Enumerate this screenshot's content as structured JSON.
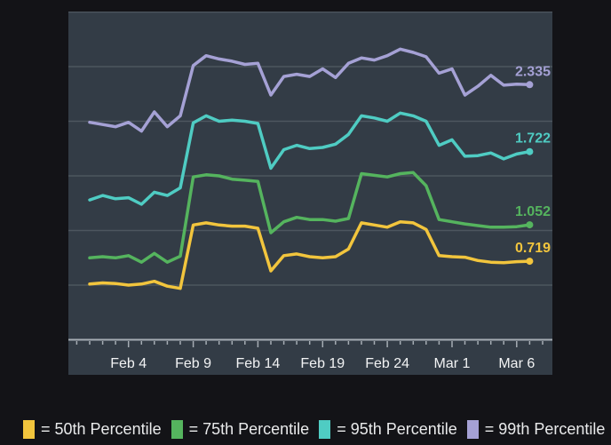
{
  "page": {
    "background_color": "#131317"
  },
  "chart_data": {
    "type": "line",
    "title": "",
    "xlabel": "",
    "ylabel": "",
    "x_tick_labels": [
      "Feb 4",
      "Feb 9",
      "Feb 14",
      "Feb 19",
      "Feb 24",
      "Mar 1",
      "Mar 6"
    ],
    "x_tick_indices": [
      3,
      8,
      13,
      18,
      23,
      28,
      33
    ],
    "n_points": 35,
    "x_range_note": "daily points from Feb 1 through Mar 7",
    "ylim": [
      0,
      3
    ],
    "y_grid_step": 0.5,
    "grid": true,
    "legend_position": "bottom",
    "panel_bg": "#333c46",
    "grid_color": "#4d565f",
    "axis_color": "#a6adb4",
    "tick_label_color": "#f2f3f4",
    "series": [
      {
        "name": "50th Percentile",
        "legend_label": "= 50th Percentile",
        "color": "#f2c53d",
        "end_label": "0.719",
        "values": [
          0.51,
          0.52,
          0.515,
          0.5,
          0.51,
          0.535,
          0.49,
          0.47,
          1.05,
          1.07,
          1.05,
          1.04,
          1.04,
          1.02,
          0.63,
          0.77,
          0.785,
          0.76,
          0.75,
          0.76,
          0.83,
          1.07,
          1.05,
          1.03,
          1.08,
          1.07,
          1.01,
          0.77,
          0.76,
          0.755,
          0.725,
          0.71,
          0.705,
          0.715,
          0.719
        ]
      },
      {
        "name": "75th Percentile",
        "legend_label": "= 75th Percentile",
        "color": "#55b45e",
        "end_label": "1.052",
        "values": [
          0.75,
          0.76,
          0.75,
          0.77,
          0.71,
          0.79,
          0.71,
          0.765,
          1.49,
          1.51,
          1.5,
          1.47,
          1.46,
          1.45,
          0.98,
          1.08,
          1.12,
          1.1,
          1.1,
          1.085,
          1.11,
          1.52,
          1.505,
          1.49,
          1.52,
          1.53,
          1.41,
          1.1,
          1.08,
          1.06,
          1.045,
          1.03,
          1.03,
          1.035,
          1.052
        ]
      },
      {
        "name": "95th Percentile",
        "legend_label": "= 95th Percentile",
        "color": "#4fccc3",
        "end_label": "1.722",
        "values": [
          1.28,
          1.32,
          1.29,
          1.3,
          1.24,
          1.35,
          1.32,
          1.39,
          1.985,
          2.05,
          2.0,
          2.01,
          2.0,
          1.98,
          1.57,
          1.74,
          1.78,
          1.75,
          1.76,
          1.79,
          1.88,
          2.05,
          2.03,
          2.0,
          2.075,
          2.05,
          2.0,
          1.78,
          1.83,
          1.68,
          1.685,
          1.71,
          1.655,
          1.7,
          1.722
        ]
      },
      {
        "name": "99th Percentile",
        "legend_label": "= 99th Percentile",
        "color": "#a5a1d5",
        "end_label": "2.335",
        "values": [
          1.99,
          1.97,
          1.95,
          1.99,
          1.91,
          2.085,
          1.95,
          2.05,
          2.51,
          2.6,
          2.57,
          2.55,
          2.52,
          2.53,
          2.24,
          2.41,
          2.43,
          2.41,
          2.48,
          2.4,
          2.53,
          2.58,
          2.56,
          2.6,
          2.66,
          2.63,
          2.59,
          2.44,
          2.48,
          2.24,
          2.32,
          2.42,
          2.33,
          2.34,
          2.335
        ]
      }
    ]
  },
  "legend": {
    "items": [
      {
        "label": "= 50th Percentile"
      },
      {
        "label": "= 75th Percentile"
      },
      {
        "label": "= 95th Percentile"
      },
      {
        "label": "= 99th Percentile"
      }
    ]
  }
}
